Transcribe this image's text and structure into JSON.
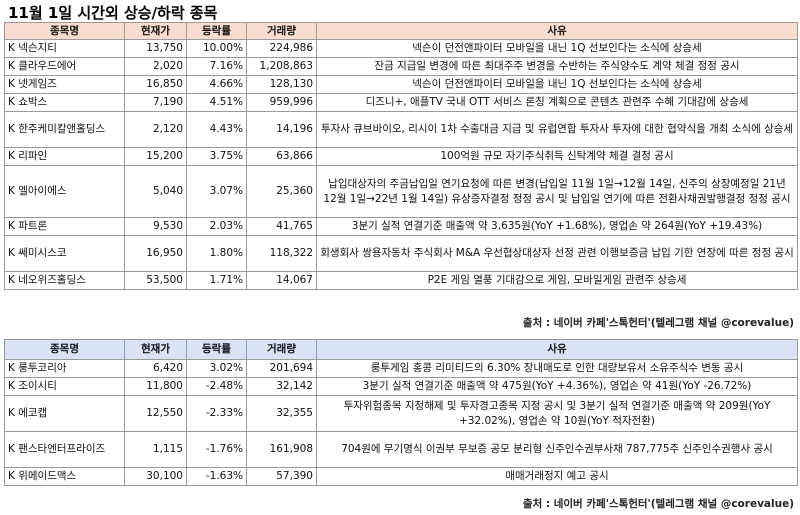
{
  "title": "11월 1일  시간외 상승/하락 종목",
  "headers": [
    "종목명",
    "현재가",
    "등락률",
    "거래량",
    "사유"
  ],
  "source": "출처 : 네이버 카페'스톡헌터'(텔레그램 채널 @corevalue)",
  "rising": [
    {
      "name": "K 넥슨지티",
      "price": "13,750",
      "change": "10.00%",
      "volume": "224,986",
      "reason": "넥슨이 던전앤파이터 모바일을 내닌 1Q 선보인다는 소식에 상승세"
    },
    {
      "name": "K 클라우드에어",
      "price": "2,020",
      "change": "7.16%",
      "volume": "1,208,863",
      "reason": "잔금 지급일 변경에 따른 최대주주 변경을 수반하는 주식양수도 계약 체결 정정 공시"
    },
    {
      "name": "K 넷게임즈",
      "price": "16,850",
      "change": "4.66%",
      "volume": "128,130",
      "reason": "넥슨이 던전앤파이터 모바일을 내닌 1Q 선보인다는 소식에 상승세"
    },
    {
      "name": "K 쇼박스",
      "price": "7,190",
      "change": "4.51%",
      "volume": "959,996",
      "reason": "디즈니+, 애플TV 국내 OTT 서비스 론칭 계획으로 콘텐츠 관련주 수혜 기대감에 상승세"
    },
    {
      "name": "K 한주케미칼앤홀딩스",
      "price": "2,120",
      "change": "4.43%",
      "volume": "14,196",
      "reason": "투자사 큐브바이오, 리시이 1차 수출대금 지급 및 유럽연합 투자사 투자에 대한 협약식을 개최 소식에 상승세"
    },
    {
      "name": "K 리파인",
      "price": "15,200",
      "change": "3.75%",
      "volume": "63,866",
      "reason": "100억원 규모 자기주식취득 신탁계약 체결 결정 공시"
    },
    {
      "name": "K 엘아이에스",
      "price": "5,040",
      "change": "3.07%",
      "volume": "25,360",
      "reason": "납입대상자의 주금납입일 연기요청에 따른 변경(납입일 11월 1일→12월 14일, 신주의 상장예정일 21년 12월 1일→22년 1월 14일) 유상증자결정 정정 공시 및 납입일 연기에 따른 전환사채권발행결정 정정 공시"
    },
    {
      "name": "K 파트론",
      "price": "9,530",
      "change": "2.03%",
      "volume": "41,765",
      "reason": "3분기 실적 연결기준 매출액 약 3,635원(YoY +1.68%), 영업손 약 264원(YoY +19.43%)"
    },
    {
      "name": "K 쎄미시스코",
      "price": "16,950",
      "change": "1.80%",
      "volume": "118,322",
      "reason": "회생회사 쌍용자동차 주식회사 M&A 우선협상대상자 선정 관련 이행보증금 납입 기한 연장에 따른 정정 공시"
    },
    {
      "name": "K 네오위즈홀딩스",
      "price": "53,500",
      "change": "1.71%",
      "volume": "14,067",
      "reason": "P2E 게임 열풍 기대감으로 게임, 모바일게임 관련주 상승세"
    }
  ],
  "falling": [
    {
      "name": "K 룽투코리아",
      "price": "6,420",
      "change": "3.02%",
      "volume": "201,694",
      "reason": "룽투게임 홍콩 리미티드의  6.30% 장내매도로 인한 대량보유서 소유주식수 변동 공시"
    },
    {
      "name": "K 조이시티",
      "price": "11,800",
      "change": "-2.48%",
      "volume": "32,142",
      "reason": "3분기 실적 연결기준 매출액 약 475원(YoY +4.36%), 영업손 약 41원(YoY -26.72%)"
    },
    {
      "name": "K 에코캡",
      "price": "12,550",
      "change": "-2.33%",
      "volume": "32,355",
      "reason": "투자위험종목 지정해제 및 투자경고종목 지정 공시 및 3분기 실적 연결기준 매출액 약 209원(YoY +32.02%), 영업손 약 10원(YoY  적자전환)"
    },
    {
      "name": "K 팬스타엔터프라이즈",
      "price": "1,115",
      "change": "-1.76%",
      "volume": "161,908",
      "reason": "704원에  무기명식 이권부 무보증 공모 분리형 신주인수권부사채 787,775주 신주인수권행사 공시"
    },
    {
      "name": "K 위메이드맥스",
      "price": "30,100",
      "change": "-1.63%",
      "volume": "57,390",
      "reason": "매매거래정지 예고 공시"
    }
  ]
}
